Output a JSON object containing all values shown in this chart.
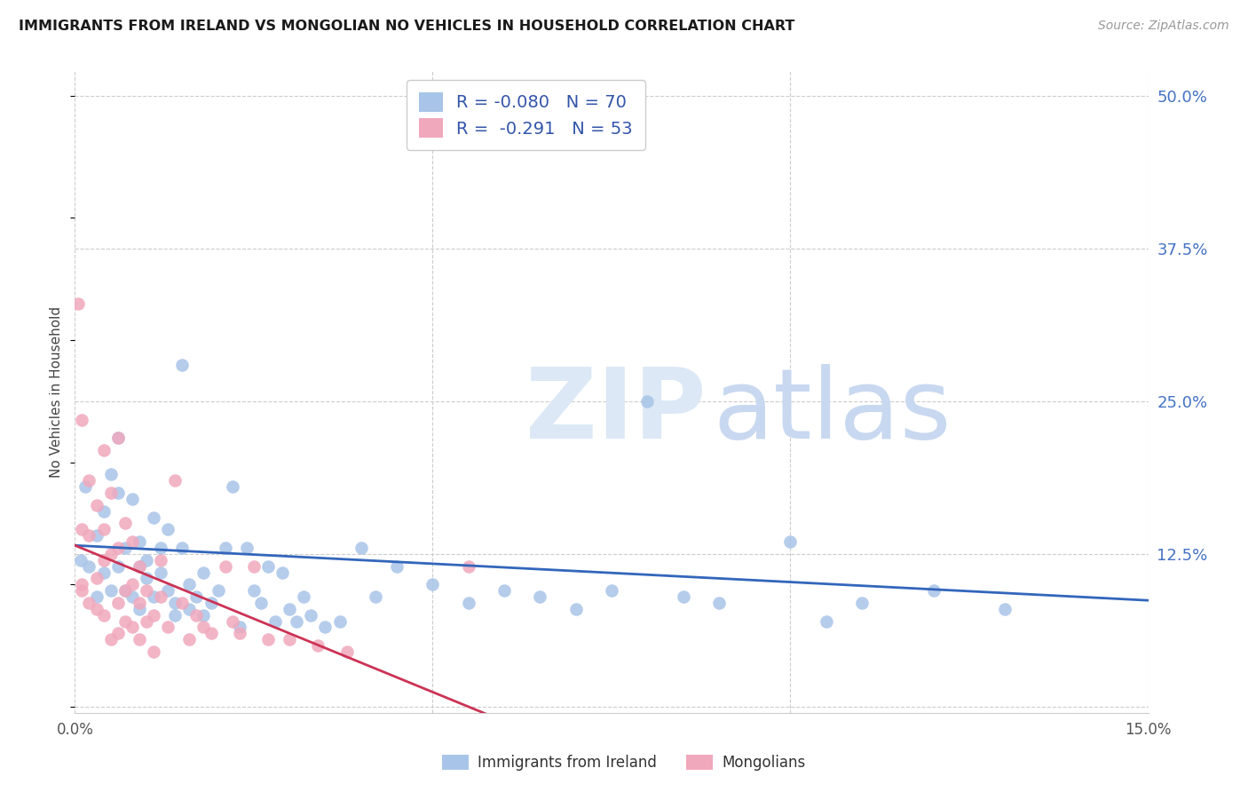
{
  "title": "IMMIGRANTS FROM IRELAND VS MONGOLIAN NO VEHICLES IN HOUSEHOLD CORRELATION CHART",
  "source": "Source: ZipAtlas.com",
  "ylabel": "No Vehicles in Household",
  "right_yticklabels": [
    "",
    "12.5%",
    "25.0%",
    "37.5%",
    "50.0%"
  ],
  "right_ytick_vals": [
    0.0,
    0.125,
    0.25,
    0.375,
    0.5
  ],
  "xmin": 0.0,
  "xmax": 0.15,
  "ymin": -0.005,
  "ymax": 0.52,
  "blue_R": -0.08,
  "blue_N": 70,
  "pink_R": -0.291,
  "pink_N": 53,
  "blue_color": "#a8c4e8",
  "pink_color": "#f0a8bc",
  "blue_line_color": "#3366bb",
  "pink_line_color": "#cc3355",
  "grid_color": "#cccccc",
  "right_tick_color": "#4472c4",
  "watermark_zip_color": "#dce8f5",
  "watermark_atlas_color": "#c8d8f0",
  "blue_scatter_x": [
    0.0008,
    0.0015,
    0.002,
    0.003,
    0.003,
    0.004,
    0.004,
    0.005,
    0.005,
    0.006,
    0.006,
    0.006,
    0.007,
    0.007,
    0.008,
    0.008,
    0.009,
    0.009,
    0.009,
    0.01,
    0.01,
    0.011,
    0.011,
    0.012,
    0.012,
    0.013,
    0.013,
    0.014,
    0.014,
    0.015,
    0.015,
    0.016,
    0.016,
    0.017,
    0.018,
    0.018,
    0.019,
    0.02,
    0.021,
    0.022,
    0.023,
    0.024,
    0.025,
    0.026,
    0.027,
    0.028,
    0.029,
    0.03,
    0.031,
    0.032,
    0.033,
    0.035,
    0.037,
    0.04,
    0.042,
    0.045,
    0.05,
    0.055,
    0.06,
    0.065,
    0.07,
    0.075,
    0.08,
    0.085,
    0.09,
    0.1,
    0.105,
    0.11,
    0.12,
    0.13
  ],
  "blue_scatter_y": [
    0.12,
    0.18,
    0.115,
    0.14,
    0.09,
    0.11,
    0.16,
    0.095,
    0.19,
    0.115,
    0.175,
    0.22,
    0.095,
    0.13,
    0.17,
    0.09,
    0.08,
    0.135,
    0.115,
    0.12,
    0.105,
    0.155,
    0.09,
    0.13,
    0.11,
    0.095,
    0.145,
    0.075,
    0.085,
    0.13,
    0.28,
    0.1,
    0.08,
    0.09,
    0.11,
    0.075,
    0.085,
    0.095,
    0.13,
    0.18,
    0.065,
    0.13,
    0.095,
    0.085,
    0.115,
    0.07,
    0.11,
    0.08,
    0.07,
    0.09,
    0.075,
    0.065,
    0.07,
    0.13,
    0.09,
    0.115,
    0.1,
    0.085,
    0.095,
    0.09,
    0.08,
    0.095,
    0.25,
    0.09,
    0.085,
    0.135,
    0.07,
    0.085,
    0.095,
    0.08
  ],
  "pink_scatter_x": [
    0.0005,
    0.001,
    0.001,
    0.001,
    0.002,
    0.002,
    0.003,
    0.003,
    0.004,
    0.004,
    0.004,
    0.005,
    0.005,
    0.006,
    0.006,
    0.006,
    0.007,
    0.007,
    0.008,
    0.008,
    0.009,
    0.009,
    0.01,
    0.01,
    0.011,
    0.012,
    0.012,
    0.013,
    0.014,
    0.015,
    0.016,
    0.017,
    0.018,
    0.019,
    0.021,
    0.022,
    0.023,
    0.025,
    0.027,
    0.03,
    0.034,
    0.038,
    0.001,
    0.002,
    0.003,
    0.004,
    0.005,
    0.006,
    0.007,
    0.008,
    0.009,
    0.011,
    0.055
  ],
  "pink_scatter_y": [
    0.33,
    0.095,
    0.145,
    0.235,
    0.185,
    0.14,
    0.165,
    0.105,
    0.145,
    0.12,
    0.21,
    0.125,
    0.175,
    0.085,
    0.13,
    0.22,
    0.095,
    0.15,
    0.1,
    0.135,
    0.085,
    0.115,
    0.07,
    0.095,
    0.075,
    0.09,
    0.12,
    0.065,
    0.185,
    0.085,
    0.055,
    0.075,
    0.065,
    0.06,
    0.115,
    0.07,
    0.06,
    0.115,
    0.055,
    0.055,
    0.05,
    0.045,
    0.1,
    0.085,
    0.08,
    0.075,
    0.055,
    0.06,
    0.07,
    0.065,
    0.055,
    0.045,
    0.115
  ]
}
